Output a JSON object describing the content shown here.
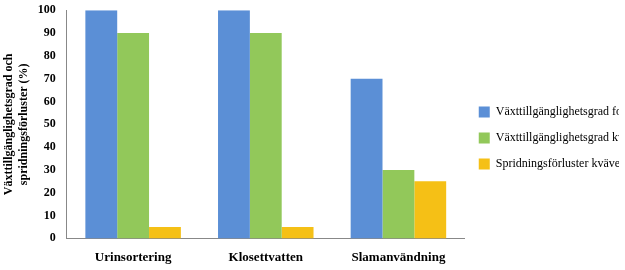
{
  "chart_data": {
    "type": "bar",
    "ylabel": [
      "Växttillgänglighetsgrad och",
      "spridningsförluster (%)"
    ],
    "categories": [
      "Urinsortering",
      "Klosettvatten",
      "Slamanvändning"
    ],
    "series": [
      {
        "name": "Växttillgänglighetsgrad fosfor",
        "color": "#5b8fd6",
        "values": [
          100,
          100,
          70
        ]
      },
      {
        "name": "Växttillgänglighetsgrad kväve",
        "color": "#92c85a",
        "values": [
          90,
          90,
          30
        ]
      },
      {
        "name": "Spridningsförluster kväve",
        "color": "#f5c016",
        "values": [
          5,
          5,
          25
        ]
      }
    ],
    "ylim": [
      0,
      100
    ],
    "yticks": [
      0,
      10,
      20,
      30,
      40,
      50,
      60,
      70,
      80,
      90,
      100
    ],
    "grid": false,
    "legend": "right"
  }
}
